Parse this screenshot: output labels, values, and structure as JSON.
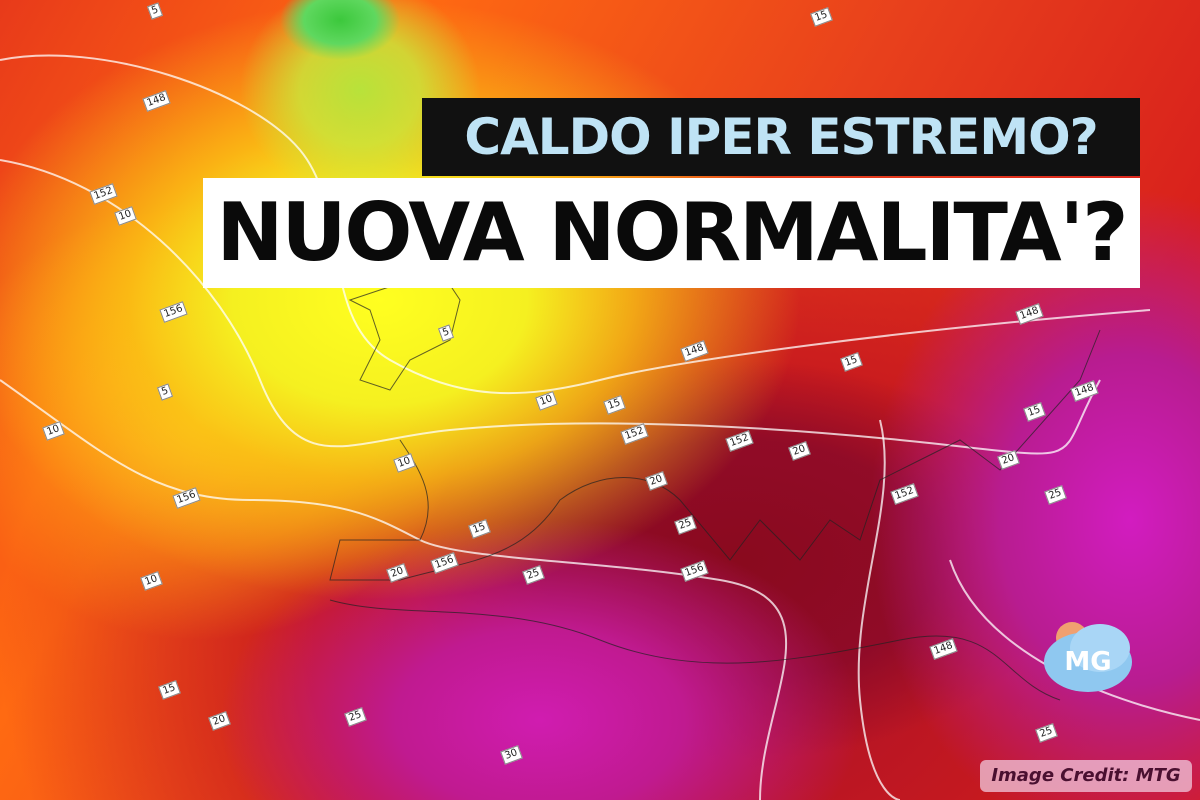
{
  "headline": {
    "line1": "CALDO IPER ESTREMO?",
    "line2": "NUOVA NORMALITA'?"
  },
  "credit": "Image Credit: MTG",
  "logo": {
    "text": "MG",
    "colors": [
      "#8fc8f0",
      "#f0a070"
    ]
  },
  "map": {
    "type": "temperature anomaly / geopotential map",
    "contour_labels": [
      "5",
      "148",
      "152",
      "10",
      "156",
      "5",
      "10",
      "156",
      "10",
      "15",
      "20",
      "25",
      "30",
      "5",
      "10",
      "15",
      "152",
      "10",
      "148",
      "15",
      "20",
      "152",
      "20",
      "25",
      "25",
      "156",
      "15",
      "20",
      "156",
      "15",
      "148",
      "20",
      "25",
      "152",
      "148",
      "15",
      "148",
      "25"
    ]
  },
  "colors": {
    "title_bg": "#111111",
    "title_text": "#bfe3f5",
    "subtitle_bg": "#ffffff",
    "subtitle_text": "#0a0a0a"
  }
}
